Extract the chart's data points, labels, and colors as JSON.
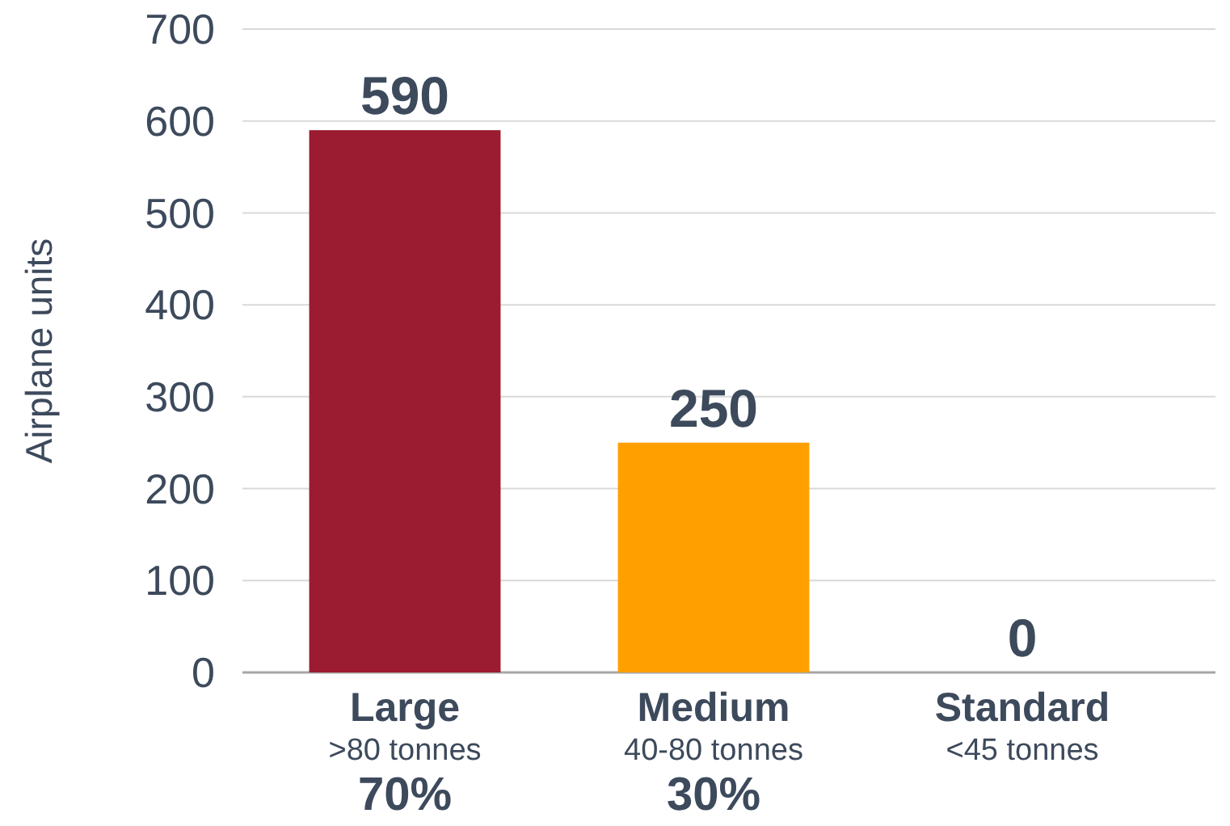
{
  "chart_data": {
    "type": "bar",
    "ylabel": "Airplane units",
    "categories": [
      "Large\n>80 tonnes\n70%",
      "Medium\n40-80 tonnes\n30%",
      "Standard\n<45 tonnes"
    ],
    "values": [
      590,
      250,
      0
    ],
    "colors": [
      "#9b1b30",
      "#ffa000",
      "#7f8c9a"
    ],
    "ylim": [
      0,
      700
    ],
    "yticks": [
      0,
      100,
      200,
      300,
      400,
      500,
      600,
      700
    ],
    "grid": "y",
    "data_labels": true
  }
}
